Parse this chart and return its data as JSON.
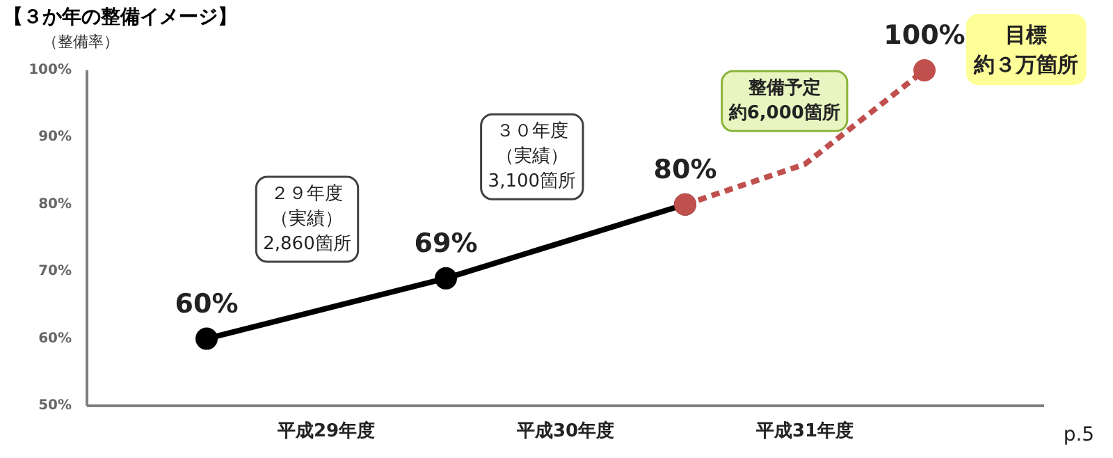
{
  "chart_data": {
    "type": "line",
    "title": "【３か年の整備イメージ】",
    "ylabel": "（整備率）",
    "categories": [
      null,
      "平成29年度",
      null,
      "平成30年度",
      null,
      "平成31年度",
      null
    ],
    "ylim": [
      50,
      100
    ],
    "yticks": [
      {
        "value": 50,
        "label": "50%"
      },
      {
        "value": 60,
        "label": "60%"
      },
      {
        "value": 70,
        "label": "70%"
      },
      {
        "value": 80,
        "label": "80%"
      },
      {
        "value": 90,
        "label": "90%"
      },
      {
        "value": 100,
        "label": "100%"
      }
    ],
    "series": [
      {
        "color": "#000000",
        "values": [
          60,
          null,
          69,
          null,
          80,
          null,
          null
        ],
        "line_style": "solid",
        "value_labels": [
          "60%",
          null,
          "69%",
          null,
          "80%",
          null,
          null
        ]
      },
      {
        "color": "#c0504d",
        "values": [
          null,
          null,
          null,
          null,
          80,
          86,
          100
        ],
        "line_style": "dashed",
        "value_labels": [
          null,
          null,
          null,
          null,
          null,
          null,
          "100%"
        ]
      }
    ],
    "marker": "circle",
    "grid": false,
    "annotations": [
      "２９年度（実績）2,860箇所",
      "３０年度（実績）3,100箇所",
      "整備予定約6,000箇所",
      "目標約３万箇所",
      "p.5"
    ]
  }
}
